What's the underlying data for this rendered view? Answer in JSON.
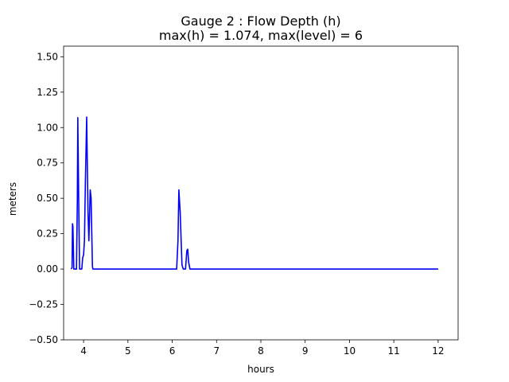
{
  "chart_data": {
    "type": "line",
    "title_line1": "Gauge 2 : Flow Depth (h)",
    "title_line2": "max(h) =   1.074,    max(level) = 6",
    "xlabel": "hours",
    "ylabel": "meters",
    "xlim": [
      3.55,
      12.45
    ],
    "ylim": [
      -0.5,
      1.575
    ],
    "xticks": [
      4,
      5,
      6,
      7,
      8,
      9,
      10,
      11,
      12
    ],
    "xtick_labels": [
      "4",
      "5",
      "6",
      "7",
      "8",
      "9",
      "10",
      "11",
      "12"
    ],
    "yticks": [
      -0.5,
      -0.25,
      0.0,
      0.25,
      0.5,
      0.75,
      1.0,
      1.25,
      1.5
    ],
    "ytick_labels": [
      "−0.50",
      "−0.25",
      "0.00",
      "0.25",
      "0.50",
      "0.75",
      "1.00",
      "1.25",
      "1.50"
    ],
    "grid": false,
    "series": [
      {
        "color": "#0000ff",
        "x": [
          3.72,
          3.74,
          3.75,
          3.76,
          3.78,
          3.84,
          3.86,
          3.87,
          3.89,
          3.91,
          3.96,
          3.98,
          4.0,
          4.02,
          4.04,
          4.07,
          4.1,
          4.12,
          4.15,
          4.17,
          4.2,
          4.21,
          4.25,
          5.0,
          6.0,
          6.1,
          6.13,
          6.15,
          6.18,
          6.22,
          6.25,
          6.3,
          6.33,
          6.35,
          6.37,
          6.4,
          6.5,
          7.0,
          7.3,
          8.0,
          10.0,
          12.0
        ],
        "y": [
          0.0,
          0.01,
          0.32,
          0.3,
          0.0,
          0.0,
          0.5,
          1.07,
          0.5,
          0.0,
          0.0,
          0.08,
          0.1,
          0.2,
          0.6,
          1.074,
          0.4,
          0.2,
          0.56,
          0.5,
          0.02,
          0.0,
          0.0,
          0.0,
          0.0,
          0.0,
          0.2,
          0.56,
          0.4,
          0.03,
          0.0,
          0.0,
          0.13,
          0.14,
          0.05,
          0.0,
          0.0,
          0.0,
          0.0,
          0.0,
          0.0,
          0.0
        ]
      }
    ]
  }
}
